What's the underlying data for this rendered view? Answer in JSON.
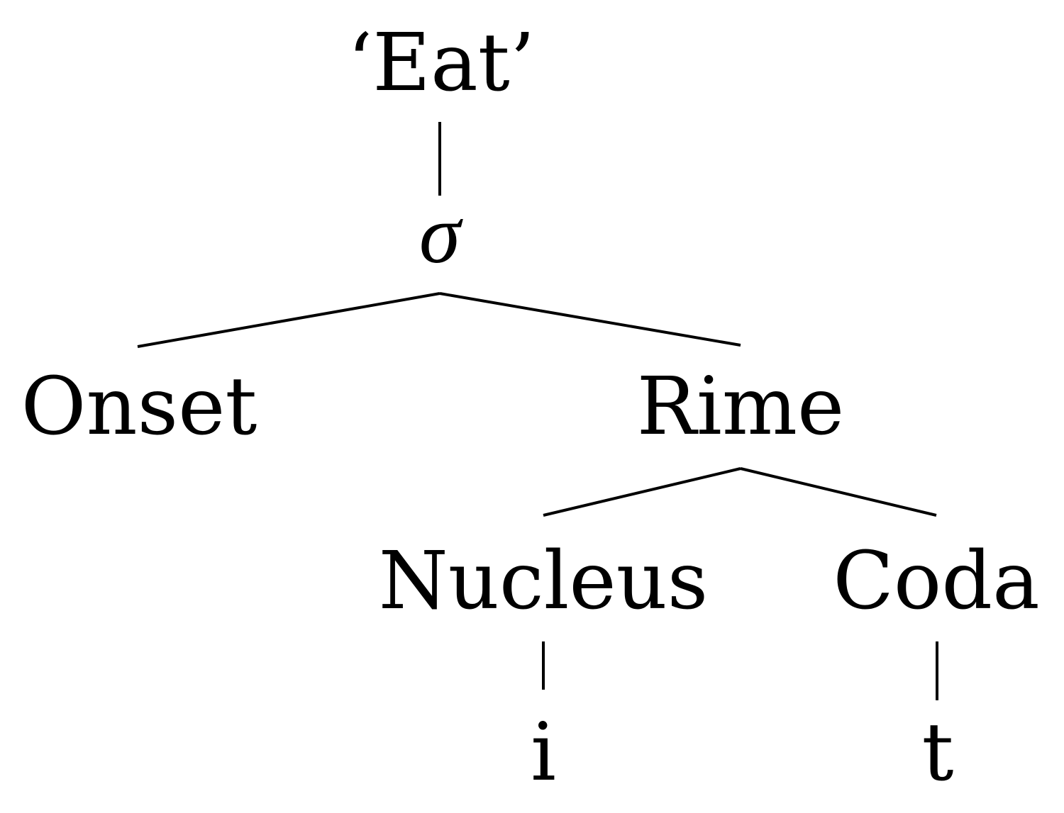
{
  "tree": {
    "nodes": [
      {
        "id": "word",
        "label": "‘Eat’"
      },
      {
        "id": "syllable",
        "label": "σ"
      },
      {
        "id": "onset",
        "label": "Onset"
      },
      {
        "id": "rime",
        "label": "Rime"
      },
      {
        "id": "nucleus",
        "label": "Nucleus"
      },
      {
        "id": "coda",
        "label": "Coda"
      },
      {
        "id": "seg-i",
        "label": "i"
      },
      {
        "id": "seg-t",
        "label": "t"
      }
    ],
    "edges": [
      {
        "from": "word",
        "to": "syllable"
      },
      {
        "from": "syllable",
        "to": "onset"
      },
      {
        "from": "syllable",
        "to": "rime"
      },
      {
        "from": "rime",
        "to": "nucleus"
      },
      {
        "from": "rime",
        "to": "coda"
      },
      {
        "from": "nucleus",
        "to": "seg-i"
      },
      {
        "from": "coda",
        "to": "seg-t"
      }
    ]
  }
}
